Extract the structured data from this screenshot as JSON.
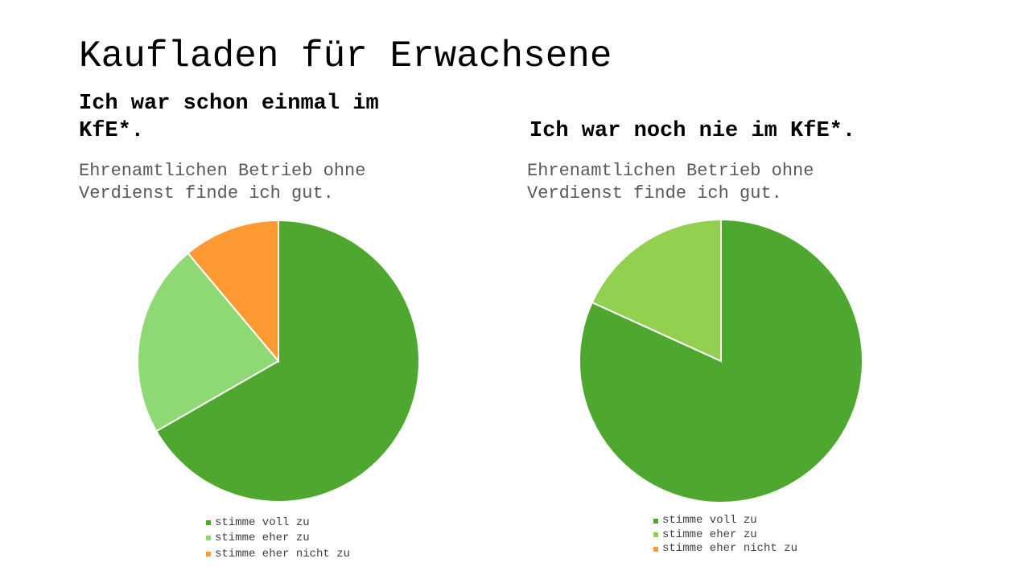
{
  "title": "Kaufladen für Erwachsene",
  "chart_data": [
    {
      "type": "pie",
      "title": "Ich war schon einmal im KfE*.",
      "subtitle": "Ehrenamtlichen Betrieb ohne Verdienst finde ich gut.",
      "categories": [
        "stimme voll zu",
        "stimme eher zu",
        "stimme eher nicht zu"
      ],
      "values": [
        66.7,
        22.2,
        11.1
      ],
      "colors": [
        "#4ea72e",
        "#8fd974",
        "#ff9a33"
      ],
      "legend": "bottom"
    },
    {
      "type": "pie",
      "title": "Ich war noch nie im KfE*.",
      "subtitle": "Ehrenamtlichen Betrieb ohne Verdienst finde ich gut.",
      "categories": [
        "stimme voll zu",
        "stimme eher zu",
        "stimme eher nicht zu"
      ],
      "values": [
        81.8,
        18.2,
        0
      ],
      "colors": [
        "#4ea72e",
        "#92d050",
        "#ff9a33"
      ],
      "legend": "bottom"
    }
  ]
}
